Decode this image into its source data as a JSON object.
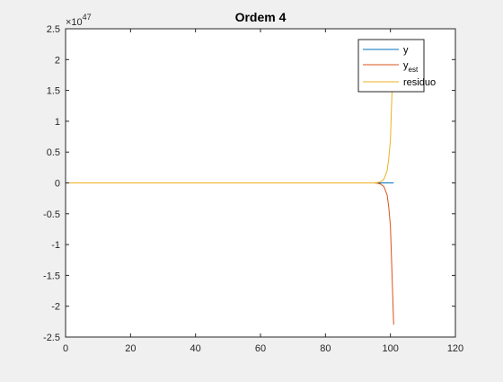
{
  "chart_data": {
    "type": "line",
    "title": "Ordem 4",
    "xlabel": "",
    "ylabel": "",
    "xlim": [
      0,
      120
    ],
    "ylim": [
      -2.5,
      2.5
    ],
    "y_exponent_label": "×10",
    "y_exponent_power": "47",
    "x_ticks": [
      "0",
      "20",
      "40",
      "60",
      "80",
      "100",
      "120"
    ],
    "x_tick_values": [
      0,
      20,
      40,
      60,
      80,
      100,
      120
    ],
    "y_ticks": [
      "2.5",
      "2",
      "1.5",
      "1",
      "0.5",
      "0",
      "-0.5",
      "-1",
      "-1.5",
      "-2",
      "-2.5"
    ],
    "y_tick_values": [
      2.5,
      2,
      1.5,
      1,
      0.5,
      0,
      -0.5,
      -1,
      -1.5,
      -2,
      -2.5
    ],
    "grid": false,
    "legend_placement": "top-right",
    "series": [
      {
        "name": "y",
        "legend_main": "y",
        "legend_sub": "",
        "color": "#0072BD",
        "x": [
          0,
          20,
          40,
          60,
          80,
          95,
          96,
          97,
          98,
          99,
          100,
          101
        ],
        "y": [
          0,
          0,
          0,
          0,
          0,
          0,
          0,
          0,
          0,
          0,
          0,
          0
        ]
      },
      {
        "name": "y_est",
        "legend_main": "y",
        "legend_sub": "est",
        "color": "#D95319",
        "x": [
          0,
          20,
          40,
          60,
          80,
          95,
          96,
          97,
          98,
          99,
          99.5,
          100,
          100.5,
          101
        ],
        "y": [
          0,
          0,
          0,
          0,
          0,
          0,
          -0.005,
          -0.02,
          -0.06,
          -0.2,
          -0.4,
          -0.7,
          -1.5,
          -2.3
        ]
      },
      {
        "name": "residuo",
        "legend_main": "residuo",
        "legend_sub": "",
        "color": "#EDB120",
        "x": [
          0,
          20,
          40,
          60,
          80,
          95,
          96,
          97,
          98,
          99,
          99.5,
          100,
          100.5,
          101
        ],
        "y": [
          0,
          0,
          0,
          0,
          0,
          0,
          0.005,
          0.02,
          0.06,
          0.2,
          0.4,
          0.7,
          1.5,
          2.3
        ]
      }
    ]
  }
}
